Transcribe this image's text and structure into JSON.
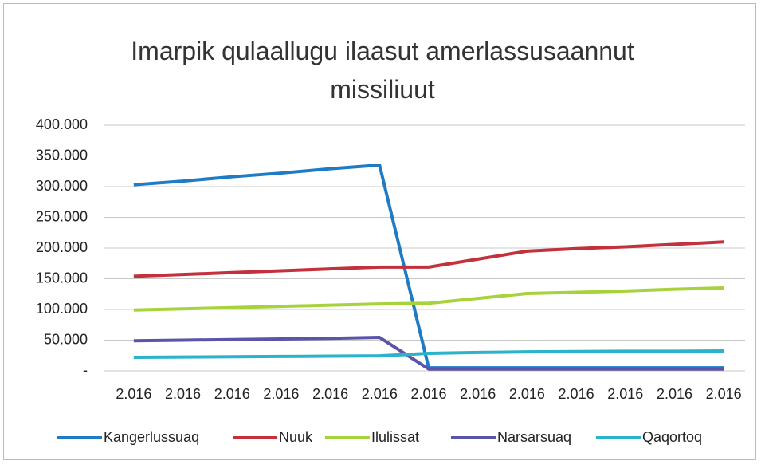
{
  "chart_data": {
    "type": "line",
    "title": "Imarpik qulaallugu ilaasut amerlassusaannut missiliuut",
    "categories": [
      "2.016",
      "2.016",
      "2.016",
      "2.016",
      "2.016",
      "2.016",
      "2.016",
      "2.016",
      "2.016",
      "2.016",
      "2.016",
      "2.016",
      "2.016"
    ],
    "series": [
      {
        "name": "Kangerlussuaq",
        "color": "#1f7bc4",
        "values": [
          303000,
          309000,
          316000,
          322000,
          329000,
          335000,
          5000,
          5000,
          5000,
          5000,
          5000,
          5000,
          5000
        ]
      },
      {
        "name": "Nuuk",
        "color": "#c2313c",
        "values": [
          154000,
          157000,
          160000,
          163000,
          166000,
          169000,
          169000,
          182000,
          195000,
          199000,
          202000,
          206000,
          210000
        ]
      },
      {
        "name": "Ilulissat",
        "color": "#a6d33c",
        "values": [
          99000,
          101000,
          103000,
          105000,
          107000,
          109000,
          110000,
          118000,
          126000,
          128000,
          130000,
          133000,
          135000
        ]
      },
      {
        "name": "Narsarsuaq",
        "color": "#5a55a8",
        "values": [
          49000,
          50000,
          51000,
          52000,
          53000,
          54500,
          3000,
          3000,
          3000,
          3000,
          3000,
          3000,
          3000
        ]
      },
      {
        "name": "Qaqortoq",
        "color": "#2ab3cb",
        "values": [
          22000,
          22500,
          23000,
          23500,
          24000,
          24500,
          28500,
          30000,
          31000,
          31500,
          32000,
          32000,
          32500
        ]
      }
    ],
    "ylim": [
      0,
      400000
    ],
    "yticks": [
      {
        "value": 0,
        "label": "-"
      },
      {
        "value": 50000,
        "label": "50.000"
      },
      {
        "value": 100000,
        "label": "100.000"
      },
      {
        "value": 150000,
        "label": "150.000"
      },
      {
        "value": 200000,
        "label": "200.000"
      },
      {
        "value": 250000,
        "label": "250.000"
      },
      {
        "value": 300000,
        "label": "300.000"
      },
      {
        "value": 350000,
        "label": "350.000"
      },
      {
        "value": 400000,
        "label": "400.000"
      }
    ],
    "grid": true,
    "legend": "bottom"
  }
}
